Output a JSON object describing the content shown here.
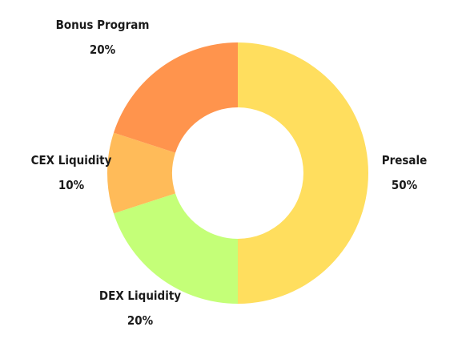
{
  "chart_data": {
    "type": "pie",
    "donut": true,
    "title": "",
    "categories": [
      "Presale",
      "DEX Liquidity",
      "CEX Liquidity",
      "Bonus Program"
    ],
    "values": [
      50,
      20,
      10,
      20
    ],
    "value_labels": [
      "50%",
      "20%",
      "10%",
      "20%"
    ],
    "colors": [
      "#FFDE5E",
      "#C4FF78",
      "#FFBB59",
      "#FF944D"
    ],
    "legend": "none"
  }
}
